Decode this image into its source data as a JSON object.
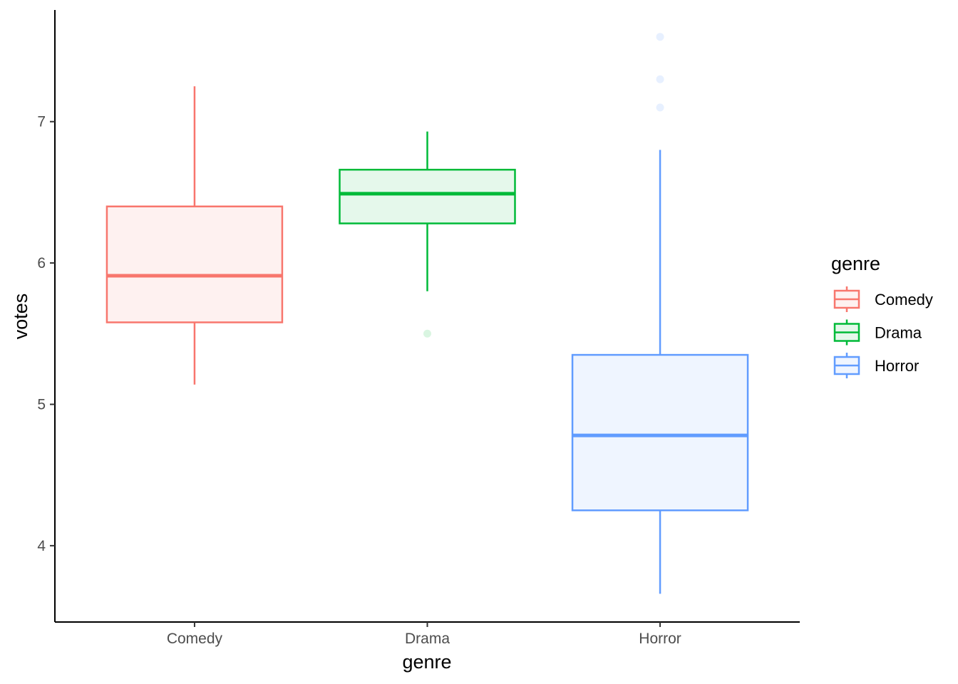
{
  "chart_data": {
    "type": "boxplot",
    "xlabel": "genre",
    "ylabel": "votes",
    "ylim": [
      3.46,
      7.79
    ],
    "y_ticks": [
      4,
      5,
      6,
      7
    ],
    "y_tick_labels": [
      "4",
      "5",
      "6",
      "7"
    ],
    "grid": false,
    "legend": {
      "title": "genre",
      "placement": "right",
      "entries": [
        "Comedy",
        "Drama",
        "Horror"
      ]
    },
    "categories": [
      "Comedy",
      "Drama",
      "Horror"
    ],
    "series": [
      {
        "name": "Comedy",
        "color": "#F8766D",
        "fill": "#FEF1F0",
        "whisker_low": 5.14,
        "q1": 5.58,
        "median": 5.91,
        "q3": 6.4,
        "whisker_high": 7.25,
        "outliers": []
      },
      {
        "name": "Drama",
        "color": "#00BA38",
        "fill": "#E5F8EB",
        "whisker_low": 5.8,
        "q1": 6.28,
        "median": 6.49,
        "q3": 6.66,
        "whisker_high": 6.93,
        "outliers": [
          5.5
        ]
      },
      {
        "name": "Horror",
        "color": "#619CFF",
        "fill": "#EFF5FF",
        "whisker_low": 3.66,
        "q1": 4.25,
        "median": 4.78,
        "q3": 5.35,
        "whisker_high": 6.8,
        "outliers": [
          7.1,
          7.3,
          7.6
        ]
      }
    ]
  }
}
